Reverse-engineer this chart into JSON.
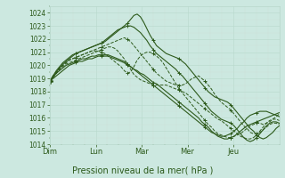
{
  "xlabel": "Pression niveau de la mer( hPa )",
  "ylim": [
    1014,
    1024.5
  ],
  "yticks": [
    1014,
    1015,
    1016,
    1017,
    1018,
    1019,
    1020,
    1021,
    1022,
    1023,
    1024
  ],
  "bg_color": "#cce8e0",
  "grid_major_color": "#b8d8cc",
  "grid_minor_color": "#cce0d8",
  "line_color": "#2d5a1b",
  "days": [
    "Dim",
    "Lun",
    "Mar",
    "Mer",
    "Jeu"
  ],
  "day_positions": [
    0,
    24,
    48,
    72,
    96
  ],
  "total_hours": 120,
  "series": [
    {
      "style": "solid",
      "data": [
        1018.8,
        1019.0,
        1019.2,
        1019.4,
        1019.6,
        1019.8,
        1020.0,
        1020.1,
        1020.2,
        1020.3,
        1020.3,
        1020.4,
        1020.5,
        1020.5,
        1020.6,
        1020.7,
        1020.7,
        1020.7,
        1020.7,
        1020.6,
        1020.5,
        1020.4,
        1020.3,
        1020.2,
        1020.0,
        1019.9,
        1019.7,
        1019.6,
        1019.4,
        1019.3,
        1019.1,
        1018.9,
        1018.7,
        1018.6,
        1018.4,
        1018.2,
        1018.0,
        1017.8,
        1017.6,
        1017.4,
        1017.2,
        1017.0,
        1016.8,
        1016.6,
        1016.4,
        1016.2,
        1016.0,
        1015.7,
        1015.5,
        1015.3,
        1015.0,
        1014.8,
        1014.6,
        1014.5,
        1014.4,
        1014.4,
        1014.5,
        1014.6,
        1014.8,
        1015.0,
        1015.2,
        1015.4,
        1015.5,
        1015.6,
        1015.7,
        1015.8,
        1015.9,
        1016.0,
        1016.1,
        1016.2,
        1016.3,
        1016.4
      ]
    },
    {
      "style": "solid",
      "data": [
        1018.8,
        1019.1,
        1019.4,
        1019.6,
        1019.8,
        1020.0,
        1020.1,
        1020.2,
        1020.3,
        1020.4,
        1020.5,
        1020.5,
        1020.6,
        1020.7,
        1020.7,
        1020.8,
        1020.8,
        1020.8,
        1020.8,
        1020.7,
        1020.6,
        1020.5,
        1020.4,
        1020.3,
        1020.1,
        1019.9,
        1019.7,
        1019.5,
        1019.3,
        1019.1,
        1018.9,
        1018.7,
        1018.5,
        1018.3,
        1018.1,
        1017.9,
        1017.7,
        1017.5,
        1017.3,
        1017.1,
        1016.9,
        1016.7,
        1016.5,
        1016.3,
        1016.1,
        1015.9,
        1015.7,
        1015.5,
        1015.3,
        1015.1,
        1014.9,
        1014.8,
        1014.7,
        1014.6,
        1014.6,
        1014.7,
        1014.8,
        1015.0,
        1015.2,
        1015.5,
        1015.7,
        1016.0,
        1016.2,
        1016.3,
        1016.4,
        1016.5,
        1016.5,
        1016.5,
        1016.4,
        1016.3,
        1016.2,
        1016.1
      ]
    },
    {
      "style": "solid",
      "data": [
        1018.8,
        1019.2,
        1019.5,
        1019.8,
        1020.1,
        1020.3,
        1020.5,
        1020.7,
        1020.9,
        1021.0,
        1021.1,
        1021.2,
        1021.3,
        1021.4,
        1021.5,
        1021.6,
        1021.7,
        1021.8,
        1022.0,
        1022.2,
        1022.4,
        1022.6,
        1022.8,
        1023.0,
        1023.2,
        1023.5,
        1023.8,
        1023.9,
        1023.7,
        1023.3,
        1022.8,
        1022.3,
        1021.9,
        1021.5,
        1021.3,
        1021.1,
        1020.9,
        1020.8,
        1020.7,
        1020.6,
        1020.5,
        1020.3,
        1020.1,
        1019.8,
        1019.5,
        1019.2,
        1018.9,
        1018.6,
        1018.3,
        1018.0,
        1017.8,
        1017.6,
        1017.5,
        1017.4,
        1017.3,
        1017.2,
        1017.0,
        1016.7,
        1016.4,
        1016.1,
        1015.8,
        1015.5,
        1015.2,
        1015.0,
        1014.7,
        1014.5,
        1014.4,
        1014.5,
        1014.7,
        1014.9,
        1015.2,
        1015.4
      ]
    },
    {
      "style": "solid",
      "data": [
        1018.8,
        1019.2,
        1019.6,
        1019.9,
        1020.2,
        1020.4,
        1020.6,
        1020.8,
        1020.9,
        1021.0,
        1021.1,
        1021.2,
        1021.3,
        1021.4,
        1021.5,
        1021.6,
        1021.7,
        1021.9,
        1022.1,
        1022.3,
        1022.5,
        1022.7,
        1022.8,
        1022.9,
        1023.0,
        1023.0,
        1022.9,
        1022.7,
        1022.5,
        1022.2,
        1021.9,
        1021.5,
        1021.2,
        1020.9,
        1020.7,
        1020.5,
        1020.3,
        1020.1,
        1019.9,
        1019.7,
        1019.4,
        1019.2,
        1018.9,
        1018.6,
        1018.3,
        1018.0,
        1017.7,
        1017.4,
        1017.1,
        1016.8,
        1016.5,
        1016.3,
        1016.1,
        1015.9,
        1015.8,
        1015.7,
        1015.6,
        1015.4,
        1015.1,
        1014.8,
        1014.5,
        1014.3,
        1014.2,
        1014.3,
        1014.5,
        1014.8,
        1015.1,
        1015.4,
        1015.6,
        1015.7,
        1015.7,
        1015.6
      ]
    },
    {
      "style": "dashed",
      "data": [
        1018.8,
        1019.2,
        1019.5,
        1019.8,
        1020.0,
        1020.2,
        1020.4,
        1020.5,
        1020.6,
        1020.7,
        1020.8,
        1020.9,
        1021.0,
        1021.1,
        1021.1,
        1021.1,
        1021.0,
        1020.9,
        1020.7,
        1020.5,
        1020.3,
        1020.1,
        1019.9,
        1019.6,
        1019.4,
        1019.5,
        1019.9,
        1020.4,
        1020.7,
        1020.9,
        1021.0,
        1021.0,
        1020.9,
        1020.7,
        1020.5,
        1020.2,
        1019.8,
        1019.4,
        1019.0,
        1018.6,
        1018.2,
        1017.9,
        1017.6,
        1017.3,
        1017.0,
        1016.7,
        1016.4,
        1016.1,
        1015.8,
        1015.5,
        1015.3,
        1015.0,
        1014.8,
        1014.7,
        1014.6,
        1014.5,
        1014.5,
        1014.6,
        1014.7,
        1014.8,
        1015.0,
        1015.2,
        1015.4,
        1015.5,
        1015.6,
        1015.6,
        1015.5,
        1015.6,
        1015.7,
        1015.9,
        1016.1,
        1016.3
      ]
    },
    {
      "style": "dashed",
      "data": [
        1018.8,
        1019.1,
        1019.4,
        1019.7,
        1020.0,
        1020.2,
        1020.4,
        1020.5,
        1020.6,
        1020.7,
        1020.8,
        1020.9,
        1021.0,
        1021.1,
        1021.2,
        1021.3,
        1021.4,
        1021.5,
        1021.6,
        1021.7,
        1021.8,
        1021.9,
        1022.0,
        1022.1,
        1022.0,
        1021.8,
        1021.5,
        1021.2,
        1020.9,
        1020.6,
        1020.3,
        1020.0,
        1019.7,
        1019.4,
        1019.2,
        1019.0,
        1018.8,
        1018.7,
        1018.6,
        1018.5,
        1018.5,
        1018.5,
        1018.6,
        1018.8,
        1019.0,
        1019.1,
        1019.2,
        1019.0,
        1018.8,
        1018.5,
        1018.2,
        1017.8,
        1017.5,
        1017.2,
        1017.0,
        1016.8,
        1016.6,
        1016.3,
        1016.0,
        1015.7,
        1015.4,
        1015.2,
        1014.9,
        1014.8,
        1014.8,
        1014.9,
        1015.1,
        1015.3,
        1015.5,
        1015.6,
        1015.6,
        1015.5
      ]
    },
    {
      "style": "dashed",
      "data": [
        1018.8,
        1019.1,
        1019.4,
        1019.7,
        1019.9,
        1020.1,
        1020.2,
        1020.3,
        1020.4,
        1020.5,
        1020.6,
        1020.7,
        1020.8,
        1020.9,
        1021.0,
        1021.1,
        1021.2,
        1021.3,
        1021.4,
        1021.4,
        1021.3,
        1021.1,
        1020.8,
        1020.5,
        1020.1,
        1019.7,
        1019.3,
        1019.1,
        1018.9,
        1018.8,
        1018.7,
        1018.6,
        1018.5,
        1018.5,
        1018.5,
        1018.5,
        1018.5,
        1018.4,
        1018.3,
        1018.2,
        1018.1,
        1018.0,
        1017.9,
        1017.7,
        1017.5,
        1017.3,
        1017.1,
        1016.9,
        1016.7,
        1016.5,
        1016.3,
        1016.1,
        1015.9,
        1015.8,
        1015.6,
        1015.4,
        1015.2,
        1015.0,
        1014.8,
        1014.6,
        1014.5,
        1014.4,
        1014.4,
        1014.5,
        1014.7,
        1015.0,
        1015.3,
        1015.6,
        1015.8,
        1015.9,
        1015.9,
        1015.8
      ]
    }
  ]
}
